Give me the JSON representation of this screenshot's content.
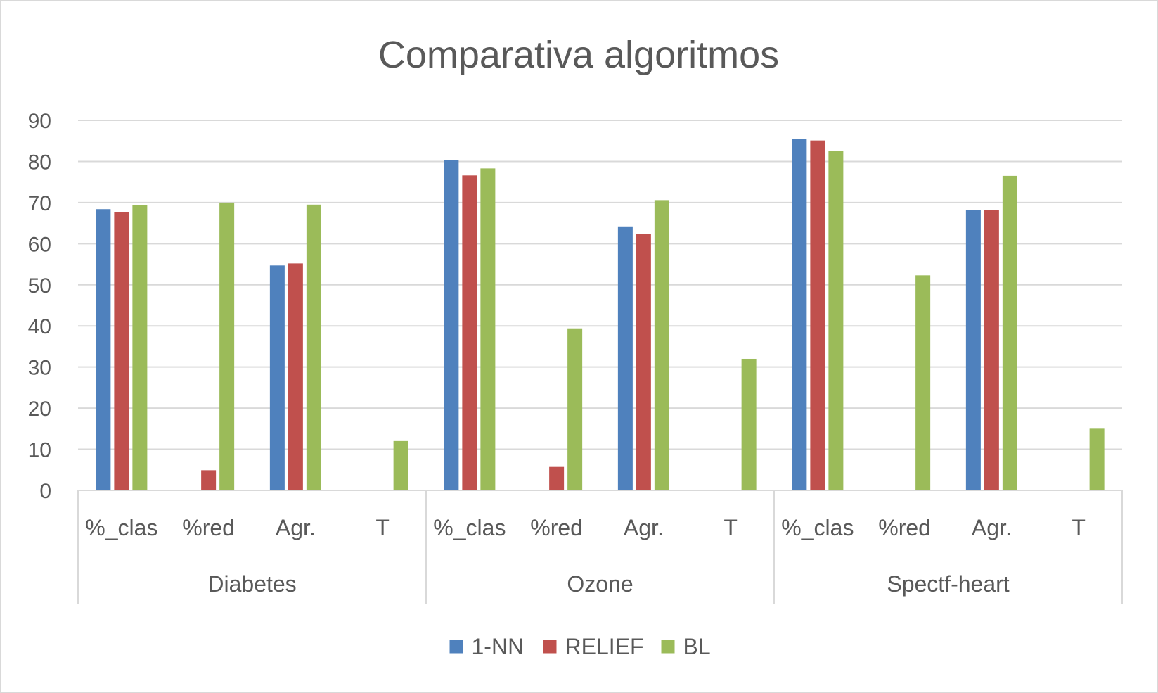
{
  "chart_data": {
    "type": "bar",
    "title": "Comparativa algoritmos",
    "xlabel": "",
    "ylabel": "",
    "ylim": [
      0,
      90
    ],
    "yticks": [
      0,
      10,
      20,
      30,
      40,
      50,
      60,
      70,
      80,
      90
    ],
    "grid": true,
    "legend_position": "bottom",
    "groups": [
      "Diabetes",
      "Ozone",
      "Spectf-heart"
    ],
    "subcategories": [
      "%_clas",
      "%red",
      "Agr.",
      "T"
    ],
    "series": [
      {
        "name": "1-NN",
        "color": "#4f81bd",
        "values": [
          68.4,
          0,
          54.7,
          0,
          80.3,
          0,
          64.2,
          0,
          85.4,
          0,
          68.2,
          0
        ]
      },
      {
        "name": "RELIEF",
        "color": "#c0504d",
        "values": [
          67.7,
          4.9,
          55.2,
          0,
          76.6,
          5.7,
          62.4,
          0,
          85.1,
          0,
          68.1,
          0
        ]
      },
      {
        "name": "BL",
        "color": "#9bbb59",
        "values": [
          69.3,
          70.0,
          69.5,
          12.0,
          78.3,
          39.4,
          70.6,
          32.0,
          82.5,
          52.3,
          76.5,
          15.0
        ]
      }
    ]
  }
}
